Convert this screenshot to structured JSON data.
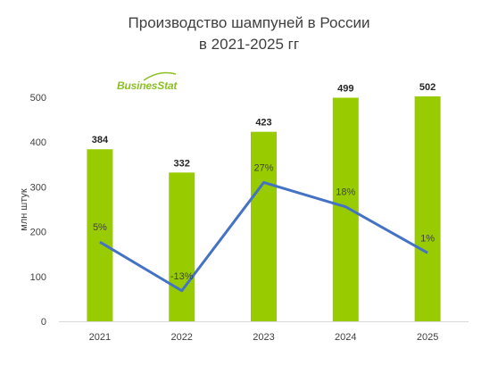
{
  "title_line1": "Производство шампуней в России",
  "title_line2": "в 2021-2025 гг",
  "logo_text": "BusinesStat",
  "colors": {
    "bar": "#99cc00",
    "line": "#4472c4",
    "axis": "#d9d9d9",
    "text": "#404040"
  },
  "chart_data": {
    "type": "bar",
    "categories": [
      "2021",
      "2022",
      "2023",
      "2024",
      "2025"
    ],
    "ylabel": "млн штук",
    "ylim": [
      0,
      500
    ],
    "yticks": [
      0,
      100,
      200,
      300,
      400,
      500
    ],
    "grid": false,
    "series": [
      {
        "values": [
          384,
          332,
          423,
          499,
          502
        ],
        "value_labels": [
          "384",
          "332",
          "423",
          "499",
          "502"
        ]
      }
    ],
    "growth_line": {
      "type": "line",
      "values": [
        5,
        -13,
        27,
        18,
        1
      ],
      "labels": [
        "5%",
        "-13%",
        "27%",
        "18%",
        "1%"
      ],
      "unit": "%"
    }
  }
}
